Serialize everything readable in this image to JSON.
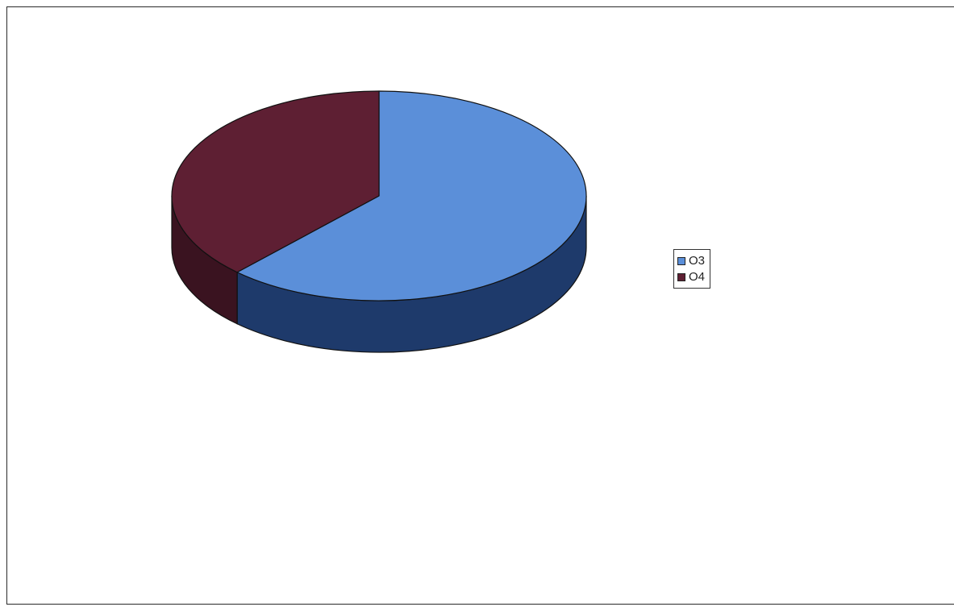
{
  "chart_data": {
    "type": "pie",
    "style": "3d",
    "title": "",
    "labels": [
      "O3",
      "O4"
    ],
    "values": [
      62,
      38
    ],
    "colors": [
      "#5b8fd9",
      "#5e1f33"
    ],
    "side_colors": [
      "#1e3a6b",
      "#3a1320"
    ],
    "legend": {
      "placement": "right",
      "entries": [
        "O3",
        "O4"
      ]
    }
  }
}
